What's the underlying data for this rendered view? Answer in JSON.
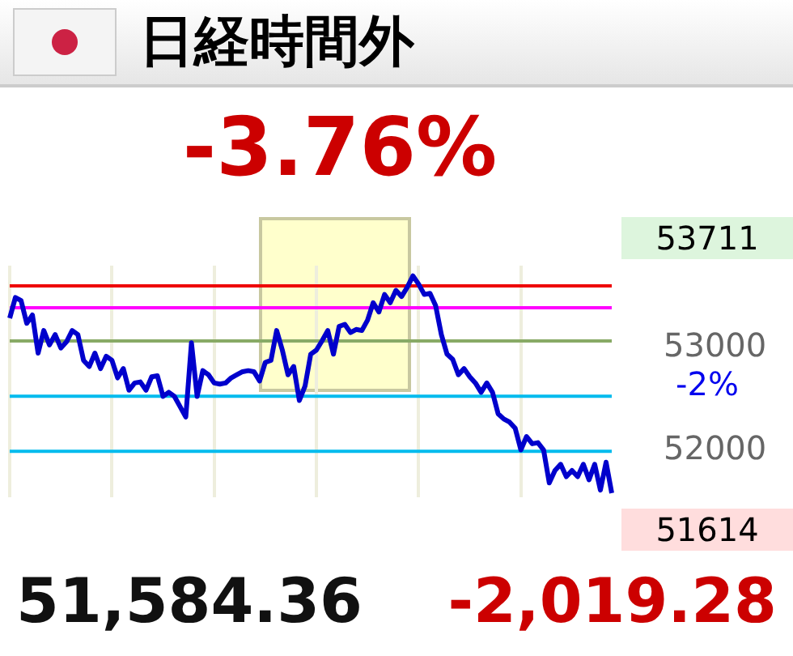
{
  "chart_data": {
    "type": "line",
    "title": "日経時間外",
    "subtitle": "-3.76%",
    "categories": [
      null,
      null,
      null,
      null,
      null,
      null,
      null,
      null,
      null,
      null,
      null,
      null,
      null,
      null,
      null,
      null,
      null,
      null,
      null,
      null,
      null,
      null,
      null,
      null,
      null,
      null,
      null,
      null,
      null,
      null,
      null,
      null,
      null,
      null,
      null,
      null,
      null,
      null,
      null,
      null,
      null,
      null,
      null,
      null,
      null,
      null,
      null,
      null,
      null,
      null,
      null,
      null,
      null,
      null,
      null,
      null,
      null,
      null,
      null,
      null,
      null,
      null,
      null,
      null,
      null,
      null,
      null,
      null,
      null,
      null,
      null,
      null,
      null,
      null,
      null,
      null,
      null,
      null,
      null,
      null,
      null,
      null,
      null,
      null,
      null,
      null,
      null,
      null,
      null,
      null,
      null,
      null,
      null,
      null,
      null,
      null,
      null,
      null,
      null,
      null,
      null,
      null,
      null,
      null,
      null,
      null,
      null
    ],
    "series": [
      {
        "color": "#0000cc",
        "values": [
          53290,
          53490,
          53460,
          53240,
          53320,
          52950,
          53170,
          53030,
          53130,
          53000,
          53060,
          53170,
          53130,
          52880,
          52820,
          52950,
          52800,
          52920,
          52880,
          52710,
          52800,
          52590,
          52660,
          52670,
          52590,
          52720,
          52730,
          52530,
          52570,
          52530,
          52430,
          52330,
          53050,
          52530,
          52780,
          52740,
          52660,
          52650,
          52660,
          52710,
          52740,
          52770,
          52780,
          52770,
          52680,
          52860,
          52880,
          53170,
          52980,
          52740,
          52820,
          52490,
          52630,
          52940,
          52980,
          53070,
          53170,
          52940,
          53210,
          53230,
          53150,
          53180,
          53170,
          53270,
          53440,
          53350,
          53520,
          53440,
          53560,
          53500,
          53590,
          53700,
          53620,
          53520,
          53530,
          53410,
          53130,
          52940,
          52890,
          52740,
          52800,
          52720,
          52660,
          52570,
          52660,
          52570,
          52360,
          52310,
          52280,
          52220,
          52010,
          52140,
          52070,
          52080,
          52010,
          51690,
          51810,
          51870,
          51750,
          51810,
          51750,
          51870,
          51720,
          51870,
          51620,
          51890,
          51590
        ]
      }
    ],
    "ylim": [
      51550,
      53800
    ],
    "yticks": [
      53000,
      52000
    ],
    "grid": "x",
    "legend": false,
    "ref_lines": [
      {
        "axis": "y",
        "value": 53604,
        "color": "#ee0000"
      },
      {
        "axis": "y",
        "value": 53390,
        "color": "#ff00ff"
      },
      {
        "axis": "y",
        "value": 53068,
        "color": "#88aa66"
      },
      {
        "axis": "y",
        "value": 52532,
        "color": "#00bbee"
      },
      {
        "axis": "y",
        "value": 51996,
        "color": "#00bbee"
      }
    ],
    "annotations": [
      "51,584.36",
      "-2,019.28",
      "53711",
      "51614",
      "-2%"
    ]
  }
}
